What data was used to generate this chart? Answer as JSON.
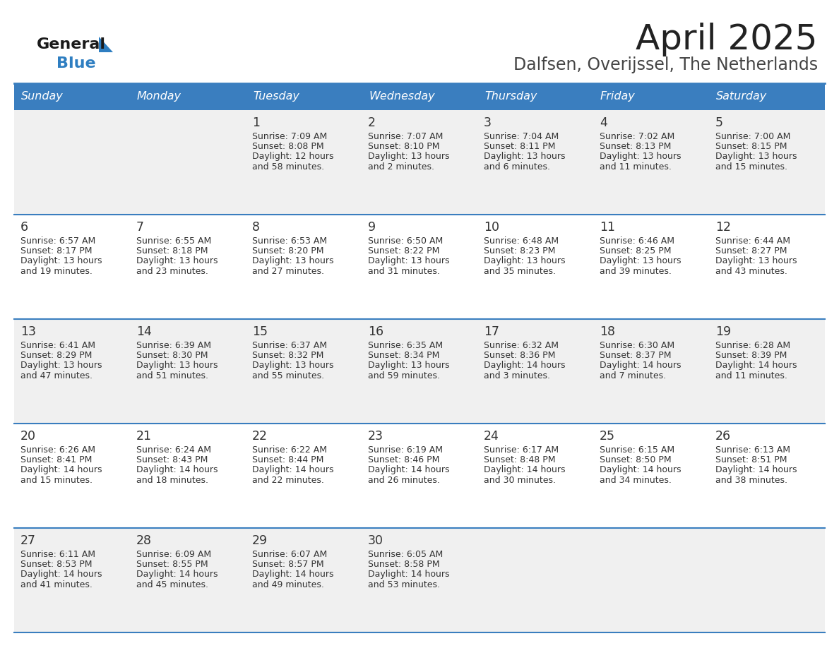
{
  "title": "April 2025",
  "subtitle": "Dalfsen, Overijssel, The Netherlands",
  "days_of_week": [
    "Sunday",
    "Monday",
    "Tuesday",
    "Wednesday",
    "Thursday",
    "Friday",
    "Saturday"
  ],
  "header_bg": "#3A7EBF",
  "header_text": "#FFFFFF",
  "cell_bg_odd": "#F0F0F0",
  "cell_bg_even": "#FFFFFF",
  "row_line_color": "#3A7EBF",
  "text_color": "#333333",
  "title_color": "#222222",
  "subtitle_color": "#444444",
  "logo_general_color": "#1a1a1a",
  "logo_blue_color": "#2E7EC1",
  "calendar_data": [
    [
      {
        "day": null,
        "sunrise": null,
        "sunset": null,
        "daylight": null
      },
      {
        "day": null,
        "sunrise": null,
        "sunset": null,
        "daylight": null
      },
      {
        "day": 1,
        "sunrise": "7:09 AM",
        "sunset": "8:08 PM",
        "daylight": "12 hours and 58 minutes."
      },
      {
        "day": 2,
        "sunrise": "7:07 AM",
        "sunset": "8:10 PM",
        "daylight": "13 hours and 2 minutes."
      },
      {
        "day": 3,
        "sunrise": "7:04 AM",
        "sunset": "8:11 PM",
        "daylight": "13 hours and 6 minutes."
      },
      {
        "day": 4,
        "sunrise": "7:02 AM",
        "sunset": "8:13 PM",
        "daylight": "13 hours and 11 minutes."
      },
      {
        "day": 5,
        "sunrise": "7:00 AM",
        "sunset": "8:15 PM",
        "daylight": "13 hours and 15 minutes."
      }
    ],
    [
      {
        "day": 6,
        "sunrise": "6:57 AM",
        "sunset": "8:17 PM",
        "daylight": "13 hours and 19 minutes."
      },
      {
        "day": 7,
        "sunrise": "6:55 AM",
        "sunset": "8:18 PM",
        "daylight": "13 hours and 23 minutes."
      },
      {
        "day": 8,
        "sunrise": "6:53 AM",
        "sunset": "8:20 PM",
        "daylight": "13 hours and 27 minutes."
      },
      {
        "day": 9,
        "sunrise": "6:50 AM",
        "sunset": "8:22 PM",
        "daylight": "13 hours and 31 minutes."
      },
      {
        "day": 10,
        "sunrise": "6:48 AM",
        "sunset": "8:23 PM",
        "daylight": "13 hours and 35 minutes."
      },
      {
        "day": 11,
        "sunrise": "6:46 AM",
        "sunset": "8:25 PM",
        "daylight": "13 hours and 39 minutes."
      },
      {
        "day": 12,
        "sunrise": "6:44 AM",
        "sunset": "8:27 PM",
        "daylight": "13 hours and 43 minutes."
      }
    ],
    [
      {
        "day": 13,
        "sunrise": "6:41 AM",
        "sunset": "8:29 PM",
        "daylight": "13 hours and 47 minutes."
      },
      {
        "day": 14,
        "sunrise": "6:39 AM",
        "sunset": "8:30 PM",
        "daylight": "13 hours and 51 minutes."
      },
      {
        "day": 15,
        "sunrise": "6:37 AM",
        "sunset": "8:32 PM",
        "daylight": "13 hours and 55 minutes."
      },
      {
        "day": 16,
        "sunrise": "6:35 AM",
        "sunset": "8:34 PM",
        "daylight": "13 hours and 59 minutes."
      },
      {
        "day": 17,
        "sunrise": "6:32 AM",
        "sunset": "8:36 PM",
        "daylight": "14 hours and 3 minutes."
      },
      {
        "day": 18,
        "sunrise": "6:30 AM",
        "sunset": "8:37 PM",
        "daylight": "14 hours and 7 minutes."
      },
      {
        "day": 19,
        "sunrise": "6:28 AM",
        "sunset": "8:39 PM",
        "daylight": "14 hours and 11 minutes."
      }
    ],
    [
      {
        "day": 20,
        "sunrise": "6:26 AM",
        "sunset": "8:41 PM",
        "daylight": "14 hours and 15 minutes."
      },
      {
        "day": 21,
        "sunrise": "6:24 AM",
        "sunset": "8:43 PM",
        "daylight": "14 hours and 18 minutes."
      },
      {
        "day": 22,
        "sunrise": "6:22 AM",
        "sunset": "8:44 PM",
        "daylight": "14 hours and 22 minutes."
      },
      {
        "day": 23,
        "sunrise": "6:19 AM",
        "sunset": "8:46 PM",
        "daylight": "14 hours and 26 minutes."
      },
      {
        "day": 24,
        "sunrise": "6:17 AM",
        "sunset": "8:48 PM",
        "daylight": "14 hours and 30 minutes."
      },
      {
        "day": 25,
        "sunrise": "6:15 AM",
        "sunset": "8:50 PM",
        "daylight": "14 hours and 34 minutes."
      },
      {
        "day": 26,
        "sunrise": "6:13 AM",
        "sunset": "8:51 PM",
        "daylight": "14 hours and 38 minutes."
      }
    ],
    [
      {
        "day": 27,
        "sunrise": "6:11 AM",
        "sunset": "8:53 PM",
        "daylight": "14 hours and 41 minutes."
      },
      {
        "day": 28,
        "sunrise": "6:09 AM",
        "sunset": "8:55 PM",
        "daylight": "14 hours and 45 minutes."
      },
      {
        "day": 29,
        "sunrise": "6:07 AM",
        "sunset": "8:57 PM",
        "daylight": "14 hours and 49 minutes."
      },
      {
        "day": 30,
        "sunrise": "6:05 AM",
        "sunset": "8:58 PM",
        "daylight": "14 hours and 53 minutes."
      },
      {
        "day": null,
        "sunrise": null,
        "sunset": null,
        "daylight": null
      },
      {
        "day": null,
        "sunrise": null,
        "sunset": null,
        "daylight": null
      },
      {
        "day": null,
        "sunrise": null,
        "sunset": null,
        "daylight": null
      }
    ]
  ]
}
